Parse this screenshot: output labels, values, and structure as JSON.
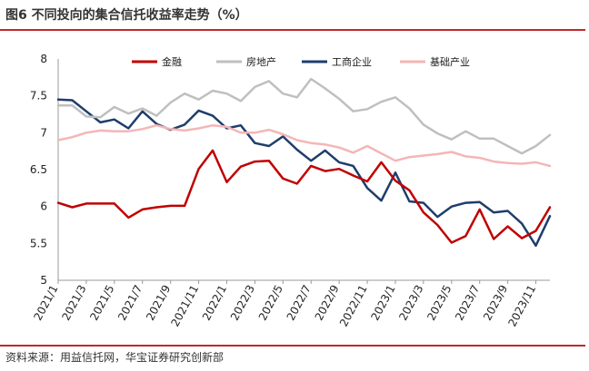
{
  "header": {
    "title": "图6 不同投向的集合信托收益率走势（%）"
  },
  "footer": {
    "source": "资料来源：用益信托网，华宝证券研究创新部"
  },
  "colors": {
    "accent": "#c0282b"
  },
  "chart_data": {
    "type": "line",
    "title": "图6 不同投向的集合信托收益率走势（%）",
    "xlabel": "",
    "ylabel": "",
    "ylim": [
      5,
      8
    ],
    "yticks": [
      "5",
      "5.5",
      "6",
      "6.5",
      "7",
      "7.5",
      "8"
    ],
    "grid": false,
    "legend_position": "top",
    "x": [
      "2021/1",
      "2021/2",
      "2021/3",
      "2021/4",
      "2021/5",
      "2021/6",
      "2021/7",
      "2021/8",
      "2021/9",
      "2021/10",
      "2021/11",
      "2021/12",
      "2022/1",
      "2022/2",
      "2022/3",
      "2022/4",
      "2022/5",
      "2022/6",
      "2022/7",
      "2022/8",
      "2022/9",
      "2022/10",
      "2022/11",
      "2022/12",
      "2023/1",
      "2023/2",
      "2023/3",
      "2023/4",
      "2023/5",
      "2023/6",
      "2023/7",
      "2023/8",
      "2023/9",
      "2023/10",
      "2023/11",
      "2023/12"
    ],
    "xtick_labels": [
      "2021/1",
      "2021/3",
      "2021/5",
      "2021/7",
      "2021/9",
      "2021/11",
      "2022/1",
      "2022/3",
      "2022/5",
      "2022/7",
      "2022/9",
      "2022/11",
      "2023/1",
      "2023/3",
      "2023/5",
      "2023/7",
      "2023/9",
      "2023/11"
    ],
    "series": [
      {
        "name": "金融",
        "color": "#c00000",
        "values": [
          6.05,
          5.99,
          6.04,
          6.04,
          6.04,
          5.85,
          5.96,
          5.99,
          6.01,
          6.01,
          6.51,
          6.76,
          6.33,
          6.54,
          6.61,
          6.62,
          6.38,
          6.31,
          6.55,
          6.48,
          6.51,
          6.42,
          6.34,
          6.6,
          6.35,
          6.22,
          5.92,
          5.75,
          5.51,
          5.6,
          5.96,
          5.56,
          5.73,
          5.57,
          5.67,
          5.99
        ]
      },
      {
        "name": "房地产",
        "color": "#bfbfbf",
        "values": [
          7.37,
          7.37,
          7.22,
          7.21,
          7.35,
          7.26,
          7.33,
          7.23,
          7.41,
          7.53,
          7.45,
          7.57,
          7.53,
          7.43,
          7.62,
          7.7,
          7.53,
          7.48,
          7.73,
          7.6,
          7.46,
          7.29,
          7.32,
          7.42,
          7.48,
          7.33,
          7.11,
          6.99,
          6.91,
          7.02,
          6.92,
          6.92,
          6.82,
          6.72,
          6.82,
          6.97
        ]
      },
      {
        "name": "工商企业",
        "color": "#1f3d6b",
        "values": [
          7.45,
          7.44,
          7.29,
          7.14,
          7.18,
          7.06,
          7.29,
          7.12,
          7.04,
          7.11,
          7.3,
          7.23,
          7.06,
          7.1,
          6.86,
          6.82,
          6.95,
          6.77,
          6.62,
          6.76,
          6.6,
          6.55,
          6.25,
          6.08,
          6.46,
          6.07,
          6.05,
          5.86,
          6.0,
          6.05,
          6.06,
          5.92,
          5.94,
          5.77,
          5.47,
          5.87
        ]
      },
      {
        "name": "基础产业",
        "color": "#f4b6b6",
        "values": [
          6.9,
          6.94,
          7.0,
          7.03,
          7.02,
          7.02,
          7.05,
          7.1,
          7.05,
          7.03,
          7.06,
          7.1,
          7.08,
          7.0,
          7.0,
          7.04,
          6.98,
          6.9,
          6.86,
          6.84,
          6.8,
          6.73,
          6.82,
          6.72,
          6.62,
          6.67,
          6.69,
          6.71,
          6.74,
          6.68,
          6.66,
          6.61,
          6.59,
          6.58,
          6.6,
          6.55
        ]
      }
    ]
  }
}
